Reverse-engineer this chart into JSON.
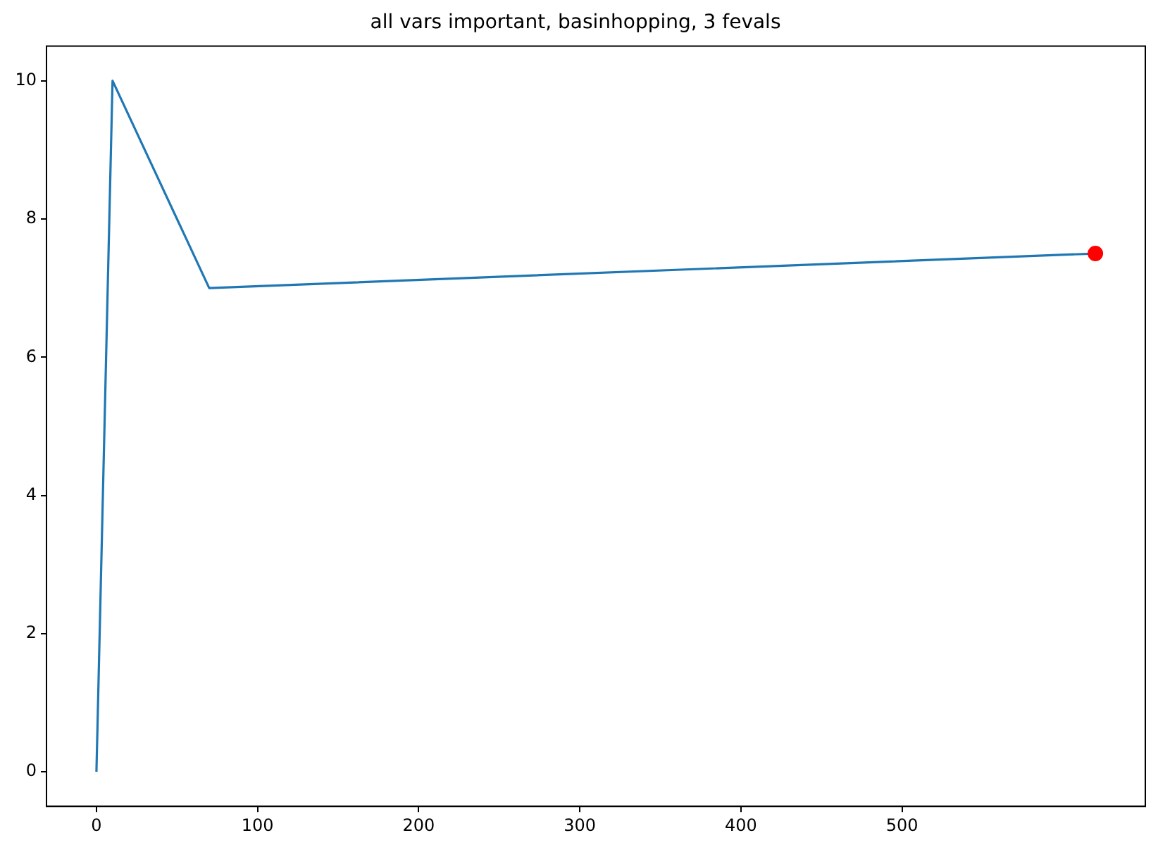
{
  "chart_data": {
    "type": "line",
    "title": "all vars important, basinhopping, 3 fevals",
    "series": [
      {
        "type": "line",
        "color": "#1f77b4",
        "x": [
          0,
          10,
          70,
          620
        ],
        "values": [
          0,
          10,
          7,
          7.5
        ]
      },
      {
        "type": "scatter",
        "color": "#ff0000",
        "x": [
          620
        ],
        "values": [
          7.5
        ],
        "marker": "circle"
      }
    ],
    "xlim": [
      -31,
      651
    ],
    "ylim": [
      -0.5,
      10.5
    ],
    "xticks": [
      0,
      100,
      200,
      300,
      400,
      500
    ],
    "yticks": [
      0,
      2,
      4,
      6,
      8,
      10
    ],
    "grid": false,
    "legend": false,
    "marker": "none"
  }
}
